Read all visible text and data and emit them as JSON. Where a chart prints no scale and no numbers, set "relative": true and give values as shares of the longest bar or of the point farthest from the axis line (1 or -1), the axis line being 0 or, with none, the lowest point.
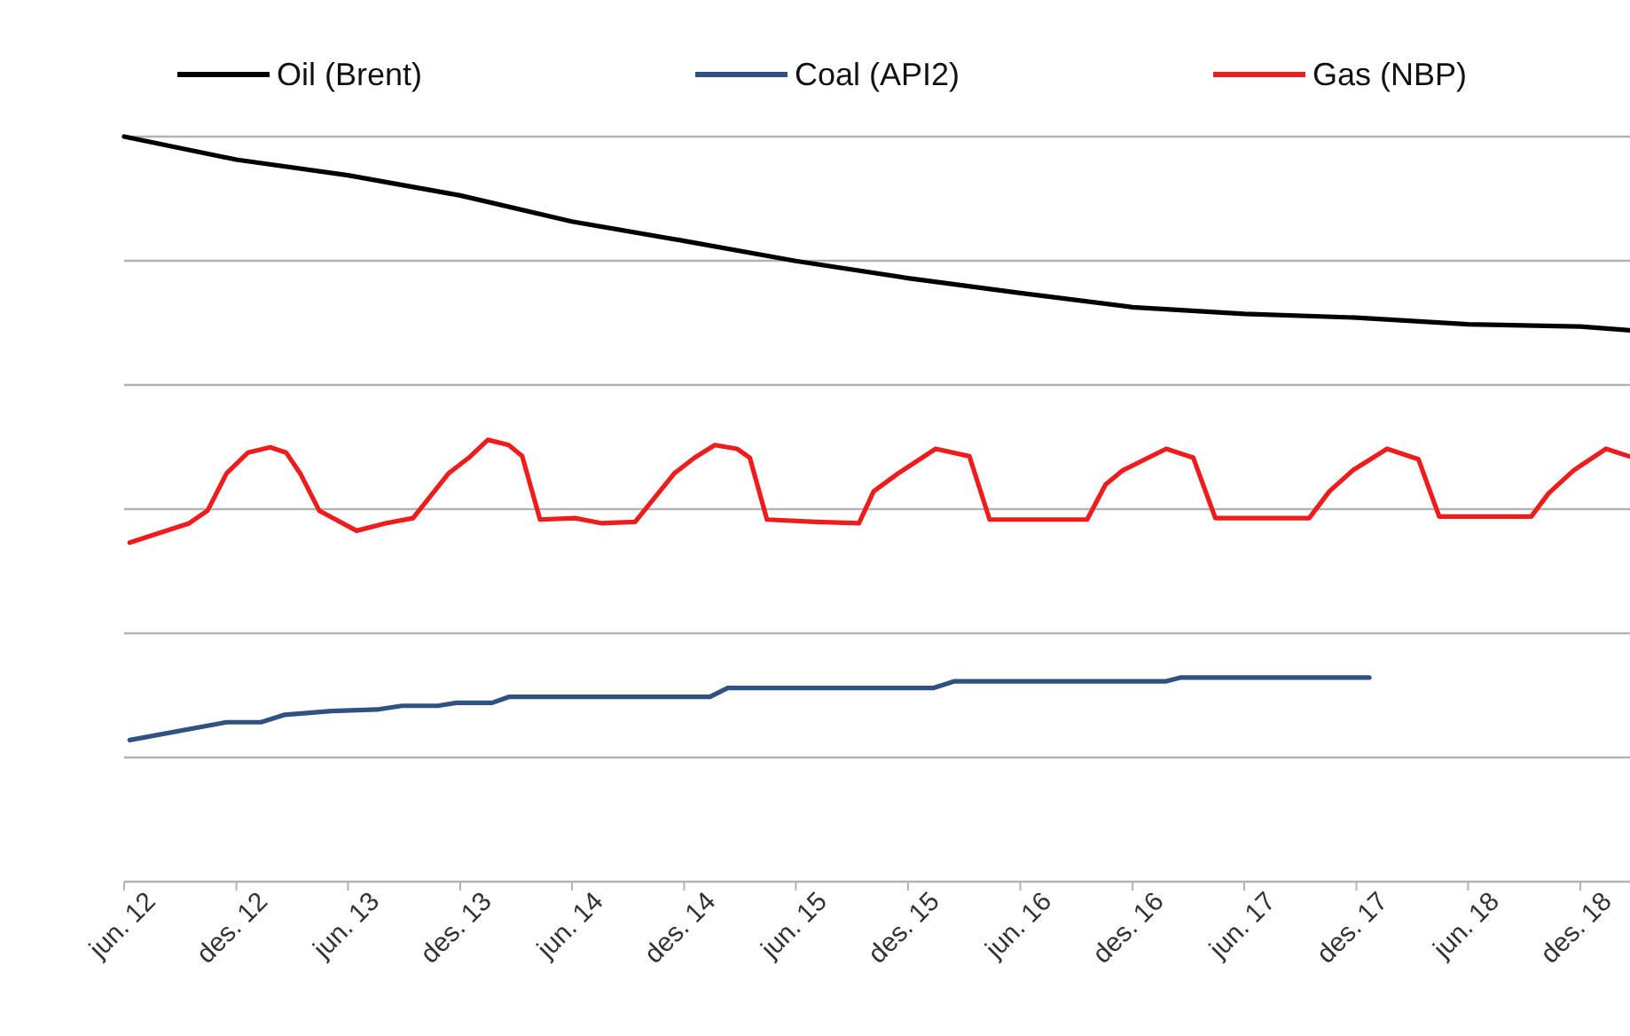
{
  "chart_data": {
    "type": "line",
    "relative": true,
    "grid": "y",
    "legend": "top",
    "line_style": "solid",
    "xlim": [
      "2012-06-01",
      "2019-02-20"
    ],
    "xticks": [
      {
        "value": "2012-06-01",
        "label": "jun. 12"
      },
      {
        "value": "2012-12-01",
        "label": "des. 12"
      },
      {
        "value": "2013-06-01",
        "label": "jun. 13"
      },
      {
        "value": "2013-12-01",
        "label": "des. 13"
      },
      {
        "value": "2014-06-01",
        "label": "jun. 14"
      },
      {
        "value": "2014-12-01",
        "label": "des. 14"
      },
      {
        "value": "2015-06-01",
        "label": "jun. 15"
      },
      {
        "value": "2015-12-01",
        "label": "des. 15"
      },
      {
        "value": "2016-06-01",
        "label": "jun. 16"
      },
      {
        "value": "2016-12-01",
        "label": "des. 16"
      },
      {
        "value": "2017-06-01",
        "label": "jun. 17"
      },
      {
        "value": "2017-12-01",
        "label": "des. 17"
      },
      {
        "value": "2018-06-01",
        "label": "jun. 18"
      },
      {
        "value": "2018-12-01",
        "label": "des. 18"
      }
    ],
    "series": [
      {
        "name": "Oil (Brent)",
        "color": "#000000",
        "x": [
          "2012-06-01",
          "2012-12-01",
          "2013-06-01",
          "2013-12-01",
          "2014-06-01",
          "2014-12-01",
          "2015-06-01",
          "2015-12-01",
          "2016-06-01",
          "2016-12-01",
          "2017-06-01",
          "2017-12-01",
          "2018-06-01",
          "2018-12-01",
          "2019-02-20"
        ],
        "values": [
          1.0,
          0.969,
          0.948,
          0.921,
          0.886,
          0.86,
          0.833,
          0.81,
          0.79,
          0.771,
          0.762,
          0.757,
          0.748,
          0.745,
          0.74
        ]
      },
      {
        "name": "Coal (API2)",
        "color": "#2f5283",
        "x": [
          "2012-06-10",
          "2012-11-15",
          "2013-01-10",
          "2013-02-18",
          "2013-05-05",
          "2013-07-18",
          "2013-08-28",
          "2013-10-25",
          "2013-11-25",
          "2014-01-22",
          "2014-02-18",
          "2015-01-12",
          "2015-02-10",
          "2016-01-12",
          "2016-02-15",
          "2017-01-25",
          "2017-02-18",
          "2017-12-22"
        ],
        "values": [
          0.19,
          0.214,
          0.214,
          0.224,
          0.229,
          0.231,
          0.236,
          0.236,
          0.24,
          0.24,
          0.248,
          0.248,
          0.26,
          0.26,
          0.269,
          0.269,
          0.274,
          0.274
        ]
      },
      {
        "name": "Gas (NBP)",
        "color": "#ee1c1c",
        "x": [
          "2012-06-10",
          "2012-09-15",
          "2012-10-15",
          "2012-11-15",
          "2012-12-20",
          "2013-01-25",
          "2013-02-20",
          "2013-03-15",
          "2013-04-15",
          "2013-06-15",
          "2013-08-01",
          "2013-09-15",
          "2013-11-12",
          "2013-12-15",
          "2014-01-15",
          "2014-02-18",
          "2014-03-12",
          "2014-04-10",
          "2014-06-06",
          "2014-07-20",
          "2014-09-12",
          "2014-11-15",
          "2014-12-18",
          "2015-01-20",
          "2015-02-25",
          "2015-03-18",
          "2015-04-15",
          "2015-07-03",
          "2015-09-12",
          "2015-10-06",
          "2015-11-15",
          "2016-01-15",
          "2016-03-10",
          "2016-04-12",
          "2016-09-18",
          "2016-10-18",
          "2016-11-15",
          "2017-01-25",
          "2017-03-10",
          "2017-04-15",
          "2017-09-15",
          "2017-10-18",
          "2017-11-25",
          "2018-01-20",
          "2018-03-12",
          "2018-04-15",
          "2018-09-12",
          "2018-10-10",
          "2018-11-20",
          "2019-01-12",
          "2019-02-18"
        ],
        "values": [
          0.455,
          0.481,
          0.498,
          0.548,
          0.576,
          0.583,
          0.576,
          0.548,
          0.498,
          0.471,
          0.481,
          0.488,
          0.548,
          0.569,
          0.593,
          0.586,
          0.571,
          0.486,
          0.488,
          0.481,
          0.483,
          0.548,
          0.569,
          0.586,
          0.581,
          0.569,
          0.486,
          0.483,
          0.481,
          0.524,
          0.548,
          0.581,
          0.571,
          0.486,
          0.486,
          0.533,
          0.552,
          0.581,
          0.569,
          0.488,
          0.488,
          0.524,
          0.552,
          0.581,
          0.567,
          0.49,
          0.49,
          0.521,
          0.552,
          0.581,
          0.571
        ]
      }
    ]
  }
}
